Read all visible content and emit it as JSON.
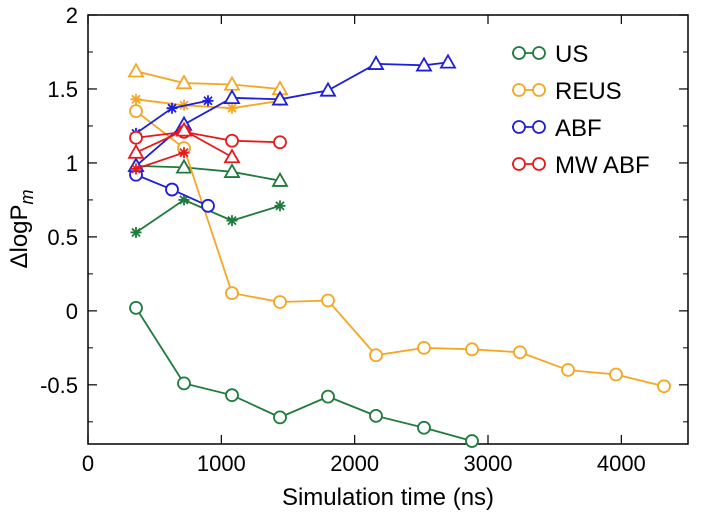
{
  "chart_data": {
    "type": "line",
    "xlabel": "Simulation time (ns)",
    "ylabel": {
      "main": "ΔlogP",
      "subscript": "m"
    },
    "xlim": [
      0,
      4500
    ],
    "ylim": [
      -0.9,
      2
    ],
    "xticks": [
      0,
      1000,
      2000,
      3000,
      4000
    ],
    "yticks": [
      -0.5,
      0,
      0.5,
      1,
      1.5,
      2
    ],
    "grid": false,
    "legend_position": "top-right",
    "legend": [
      {
        "label": "US",
        "color": "#1e7b3c"
      },
      {
        "label": "REUS",
        "color": "#f5a623"
      },
      {
        "label": "ABF",
        "color": "#1f1fd6"
      },
      {
        "label": "MW ABF",
        "color": "#e8191b"
      }
    ],
    "series": [
      {
        "color": "#1e7b3c",
        "marker": "circle",
        "x": [
          360,
          720,
          1080,
          1440,
          1800,
          2160,
          2520,
          2880
        ],
        "y": [
          0.02,
          -0.49,
          -0.57,
          -0.72,
          -0.58,
          -0.71,
          -0.79,
          -0.88
        ]
      },
      {
        "color": "#1e7b3c",
        "marker": "triangle",
        "x": [
          360,
          720,
          1080,
          1440
        ],
        "y": [
          0.98,
          0.97,
          0.94,
          0.88
        ]
      },
      {
        "color": "#1e7b3c",
        "marker": "star",
        "x": [
          360,
          720,
          1080,
          1440
        ],
        "y": [
          0.53,
          0.75,
          0.61,
          0.71
        ]
      },
      {
        "color": "#f5a623",
        "marker": "circle",
        "x": [
          360,
          720,
          1080,
          1440,
          1800,
          2160,
          2520,
          2880,
          3240,
          3600,
          3960,
          4320
        ],
        "y": [
          1.35,
          1.1,
          0.12,
          0.06,
          0.07,
          -0.3,
          -0.25,
          -0.26,
          -0.28,
          -0.4,
          -0.43,
          -0.51
        ]
      },
      {
        "color": "#f5a623",
        "marker": "triangle",
        "x": [
          360,
          720,
          1080,
          1440
        ],
        "y": [
          1.62,
          1.54,
          1.53,
          1.5
        ]
      },
      {
        "color": "#f5a623",
        "marker": "star",
        "x": [
          360,
          720,
          1080,
          1440
        ],
        "y": [
          1.43,
          1.39,
          1.37,
          1.42
        ]
      },
      {
        "color": "#1f1fd6",
        "marker": "circle",
        "x": [
          360,
          630,
          900
        ],
        "y": [
          0.92,
          0.82,
          0.71
        ]
      },
      {
        "color": "#1f1fd6",
        "marker": "triangle",
        "x": [
          360,
          720,
          1080,
          1440,
          1800,
          2160,
          2520,
          2700
        ],
        "y": [
          0.98,
          1.26,
          1.44,
          1.43,
          1.49,
          1.67,
          1.66,
          1.68
        ]
      },
      {
        "color": "#1f1fd6",
        "marker": "star",
        "x": [
          360,
          630,
          900
        ],
        "y": [
          1.2,
          1.37,
          1.42
        ]
      },
      {
        "color": "#e8191b",
        "marker": "circle",
        "x": [
          360,
          720,
          1080,
          1440
        ],
        "y": [
          1.17,
          1.21,
          1.15,
          1.14
        ]
      },
      {
        "color": "#e8191b",
        "marker": "triangle",
        "x": [
          360,
          720,
          1080
        ],
        "y": [
          1.07,
          1.22,
          1.04
        ]
      },
      {
        "color": "#e8191b",
        "marker": "star",
        "x": [
          360,
          720
        ],
        "y": [
          0.96,
          1.07
        ]
      }
    ]
  }
}
